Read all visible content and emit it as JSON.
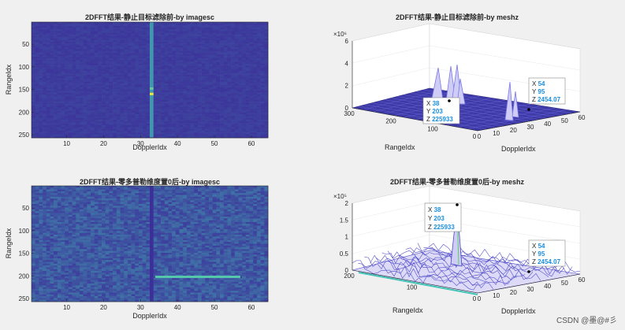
{
  "watermark": "CSDN @墨@#彡",
  "colors": {
    "cold": "#3c2f9a",
    "warm": "#43c3b6",
    "hot": "#f5e63a",
    "mesh": "#4a45c6"
  },
  "chart_data": [
    {
      "type": "heatmap",
      "title": "2DFFT结果-静止目标滤除前-by imagesc",
      "xlabel": "DopplerIdx",
      "ylabel": "RangeIdx",
      "xlim": [
        1,
        64
      ],
      "ylim": [
        256,
        1
      ],
      "xticks": [
        "10",
        "20",
        "30",
        "40",
        "50",
        "60"
      ],
      "yticks": [
        "50",
        "100",
        "150",
        "200",
        "250"
      ],
      "features": [
        {
          "x": 33,
          "y_from": 1,
          "y_to": 256,
          "level": 0.35
        },
        {
          "x": 33,
          "y": 160,
          "level": 1.0
        },
        {
          "x": 33,
          "y": 148,
          "level": 0.6
        }
      ]
    },
    {
      "type": "surface",
      "title": "2DFFT结果-静止目标滤除前-by meshz",
      "xlabel": "DopplerIdx",
      "ylabel": "RangeIdx",
      "zexp": "×10⁶",
      "zticks": [
        "0",
        "2",
        "4",
        "6"
      ],
      "xticks": [
        "0",
        "10",
        "20",
        "30",
        "40",
        "50",
        "60"
      ],
      "yticks": [
        "0",
        "100",
        "200",
        "300"
      ],
      "datatips": [
        {
          "X": "38",
          "Y": "203",
          "Z": "225933"
        },
        {
          "X": "54",
          "Y": "95",
          "Z": "2454.07"
        }
      ]
    },
    {
      "type": "heatmap",
      "title": "2DFFT结果-零多普勒维度置0后-by imagesc",
      "xlabel": "DopplerIdx",
      "ylabel": "RangeIdx",
      "xlim": [
        1,
        64
      ],
      "ylim": [
        256,
        1
      ],
      "xticks": [
        "10",
        "20",
        "30",
        "40",
        "50",
        "60"
      ],
      "yticks": [
        "50",
        "100",
        "150",
        "200",
        "250"
      ],
      "features": [
        {
          "x": 33,
          "y_from": 1,
          "y_to": 256,
          "level": 0.0
        },
        {
          "x_from": 34,
          "x_to": 57,
          "y": 203,
          "level": 0.55
        }
      ]
    },
    {
      "type": "surface",
      "title": "2DFFT结果-零多普勒维度置0后-by meshz",
      "xlabel": "DopplerIdx",
      "ylabel": "RangeIdx",
      "zexp": "×10⁵",
      "zticks": [
        "0",
        "0.5",
        "1",
        "1.5",
        "2"
      ],
      "xticks": [
        "0",
        "10",
        "20",
        "30",
        "40",
        "50",
        "60"
      ],
      "yticks": [
        "0",
        "100",
        "200"
      ],
      "datatips": [
        {
          "X": "38",
          "Y": "203",
          "Z": "225933"
        },
        {
          "X": "54",
          "Y": "95",
          "Z": "2454.07"
        }
      ]
    }
  ]
}
